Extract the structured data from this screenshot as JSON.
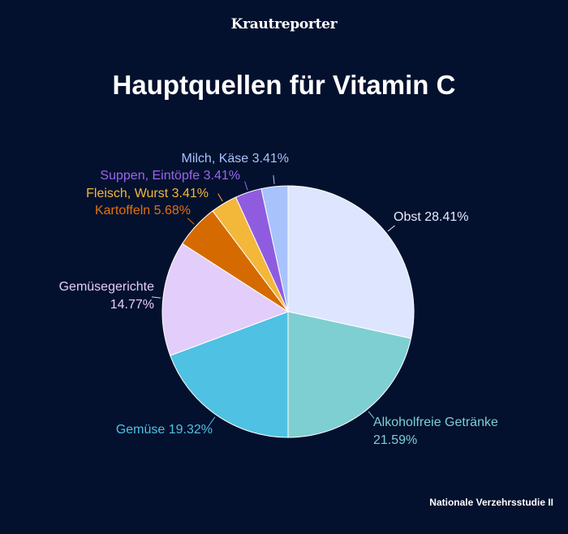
{
  "logo": "Krautreporter",
  "source": "Nationale Verzehrsstudie II",
  "chart_data": {
    "type": "pie",
    "title": "Hauptquellen für Vitamin C",
    "start": "top, clockwise",
    "slices": [
      {
        "label": "Obst",
        "value": 28.41,
        "display": "Obst 28.41%",
        "color": "#dde6fe",
        "label_color": "#e6ecff"
      },
      {
        "label": "Alkoholfreie Getränke",
        "value": 21.59,
        "display": "Alkoholfreie Getränke",
        "display2": "21.59%",
        "color": "#7ecfd2",
        "label_color": "#7ecfd2"
      },
      {
        "label": "Gemüse",
        "value": 19.32,
        "display": "Gemüse 19.32%",
        "color": "#4fc1e3",
        "label_color": "#4fc1e3"
      },
      {
        "label": "Gemüsegerichte",
        "value": 14.77,
        "display": "Gemüsegerichte",
        "display2": "14.77%",
        "color": "#e3cdfa",
        "label_color": "#e3cdfa"
      },
      {
        "label": "Kartoffeln",
        "value": 5.68,
        "display": "Kartoffeln 5.68%",
        "color": "#d56a00",
        "label_color": "#e0700f"
      },
      {
        "label": "Fleisch, Wurst",
        "value": 3.41,
        "display": "Fleisch, Wurst 3.41%",
        "color": "#f3b73a",
        "label_color": "#f3b73a"
      },
      {
        "label": "Suppen, Eintöpfe",
        "value": 3.41,
        "display": "Suppen, Eintöpfe 3.41%",
        "color": "#8f5ce0",
        "label_color": "#9a66ea"
      },
      {
        "label": "Milch, Käse",
        "value": 3.41,
        "display": "Milch, Käse 3.41%",
        "color": "#a8c2fb",
        "label_color": "#a8c2fb"
      }
    ]
  }
}
